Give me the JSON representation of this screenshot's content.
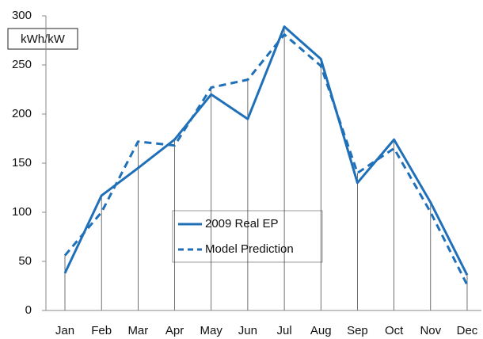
{
  "chart_data": {
    "type": "line",
    "y_label": "kWh/kW",
    "categories": [
      "Jan",
      "Feb",
      "Mar",
      "Apr",
      "May",
      "Jun",
      "Jul",
      "Aug",
      "Sep",
      "Oct",
      "Nov",
      "Dec"
    ],
    "series": [
      {
        "name": "2009 Real EP",
        "color": "#1f70b8",
        "dash": false,
        "values": [
          38,
          117,
          145,
          174,
          220,
          195,
          289,
          256,
          130,
          174,
          110,
          36
        ]
      },
      {
        "name": "Model Prediction",
        "color": "#1f70b8",
        "dash": true,
        "values": [
          56,
          100,
          172,
          168,
          227,
          235,
          281,
          249,
          140,
          165,
          100,
          26
        ]
      }
    ],
    "ylim": [
      0,
      300
    ],
    "yticks": [
      0,
      50,
      100,
      150,
      200,
      250,
      300
    ],
    "drop_lines": true
  }
}
